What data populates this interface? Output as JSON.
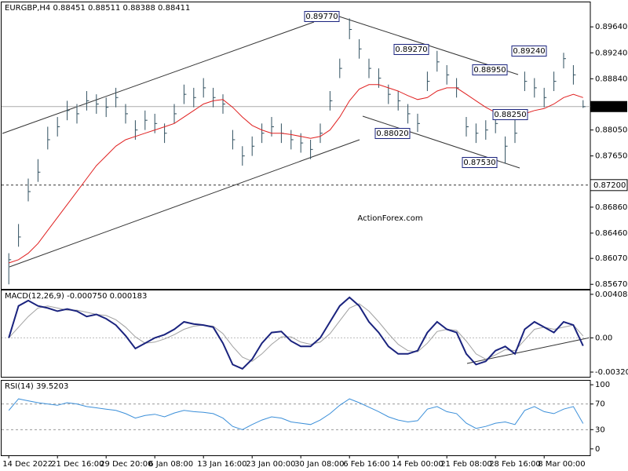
{
  "chart_data": [
    {
      "type": "ohlc",
      "title": "EURGBP,H4  0.88451 0.88511 0.88388 0.88411",
      "watermark": "ActionForex.com",
      "color": "#2f4f5f",
      "categories": [
        "14 Dec 2022",
        null,
        null,
        null,
        null,
        "21 Dec 16:00",
        null,
        null,
        null,
        null,
        "29 Dec 20:00",
        null,
        null,
        null,
        null,
        "6 Jan 08:00",
        null,
        null,
        null,
        null,
        "13 Jan 16:00",
        null,
        null,
        null,
        null,
        "23 Jan 00:00",
        null,
        null,
        null,
        null,
        "30 Jan 08:00",
        null,
        null,
        null,
        null,
        "6 Feb 16:00",
        null,
        null,
        null,
        null,
        "14 Feb 00:00",
        null,
        null,
        null,
        null,
        "21 Feb 08:00",
        null,
        null,
        null,
        null,
        "28 Feb 16:00",
        null,
        null,
        null,
        null,
        "8 Mar 00:00",
        null,
        null,
        null,
        null
      ],
      "close": [
        0.8605,
        0.864,
        0.871,
        0.874,
        0.879,
        0.881,
        0.8835,
        0.883,
        0.885,
        0.8845,
        0.884,
        0.8855,
        0.883,
        0.8805,
        0.882,
        0.8815,
        0.88,
        0.883,
        0.886,
        0.8855,
        0.887,
        0.8855,
        0.8845,
        0.879,
        0.8765,
        0.878,
        0.88,
        0.881,
        0.88,
        0.879,
        0.8785,
        0.8775,
        0.88,
        0.885,
        0.89,
        0.896,
        0.893,
        0.89,
        0.8885,
        0.886,
        0.885,
        0.883,
        0.8815,
        0.888,
        0.891,
        0.889,
        0.887,
        0.881,
        0.88,
        0.8805,
        0.8815,
        0.878,
        0.88,
        0.888,
        0.887,
        0.8855,
        0.888,
        0.8915,
        0.889,
        0.8841
      ],
      "high": [
        0.8615,
        0.866,
        0.873,
        0.876,
        0.881,
        0.8825,
        0.885,
        0.8845,
        0.8865,
        0.886,
        0.8855,
        0.887,
        0.8845,
        0.882,
        0.8835,
        0.883,
        0.8815,
        0.8845,
        0.8875,
        0.887,
        0.8885,
        0.887,
        0.886,
        0.8805,
        0.878,
        0.8795,
        0.8815,
        0.8825,
        0.8815,
        0.8805,
        0.88,
        0.879,
        0.8815,
        0.8865,
        0.8915,
        0.8977,
        0.8945,
        0.8915,
        0.89,
        0.8875,
        0.8865,
        0.8845,
        0.883,
        0.8895,
        0.8927,
        0.8905,
        0.8885,
        0.8825,
        0.8815,
        0.882,
        0.883,
        0.8795,
        0.8825,
        0.8895,
        0.8885,
        0.887,
        0.8895,
        0.8924,
        0.8905,
        0.8851
      ],
      "low": [
        0.8567,
        0.8625,
        0.8695,
        0.8725,
        0.8775,
        0.8795,
        0.882,
        0.8815,
        0.8835,
        0.883,
        0.8825,
        0.884,
        0.8815,
        0.879,
        0.8805,
        0.88,
        0.8785,
        0.8815,
        0.8845,
        0.884,
        0.8855,
        0.884,
        0.883,
        0.8775,
        0.875,
        0.8765,
        0.8785,
        0.8795,
        0.8785,
        0.8775,
        0.877,
        0.876,
        0.8785,
        0.8835,
        0.8885,
        0.8945,
        0.8915,
        0.8885,
        0.887,
        0.8845,
        0.8835,
        0.8815,
        0.8802,
        0.8865,
        0.8895,
        0.8875,
        0.8855,
        0.8795,
        0.8785,
        0.879,
        0.88,
        0.8753,
        0.8785,
        0.8865,
        0.8855,
        0.884,
        0.8865,
        0.89,
        0.8875,
        0.8839
      ],
      "ma": {
        "color": "#e02020",
        "values": [
          0.86,
          0.8605,
          0.8615,
          0.863,
          0.865,
          0.867,
          0.869,
          0.871,
          0.873,
          0.875,
          0.8765,
          0.878,
          0.879,
          0.8795,
          0.88,
          0.8805,
          0.881,
          0.8815,
          0.8825,
          0.8835,
          0.8845,
          0.885,
          0.8852,
          0.884,
          0.8825,
          0.8812,
          0.8805,
          0.88,
          0.88,
          0.8798,
          0.8795,
          0.8792,
          0.8795,
          0.8805,
          0.8825,
          0.885,
          0.8868,
          0.8875,
          0.8875,
          0.887,
          0.8865,
          0.8858,
          0.8852,
          0.8855,
          0.8865,
          0.887,
          0.887,
          0.886,
          0.885,
          0.884,
          0.8832,
          0.8828,
          0.8825,
          0.883,
          0.8835,
          0.8838,
          0.8845,
          0.8855,
          0.886,
          0.8855
        ]
      },
      "annotations": [
        "0.89770",
        "0.89270",
        "0.88950",
        "0.89240",
        "0.88250",
        "0.88020",
        "0.87530"
      ],
      "current": {
        "value": 0.88411,
        "label": "0.88411"
      },
      "level": {
        "value": 0.872,
        "label": "0.87200"
      },
      "ylim": [
        0.856,
        0.9003
      ],
      "yticks": [
        {
          "value": 0.8964,
          "label": "0.89640"
        },
        {
          "value": 0.8924,
          "label": "0.89240"
        },
        {
          "value": 0.8884,
          "label": "0.88840"
        },
        {
          "value": 0.8805,
          "label": "0.88050"
        },
        {
          "value": 0.8765,
          "label": "0.87650"
        },
        {
          "value": 0.8686,
          "label": "0.86860"
        },
        {
          "value": 0.8646,
          "label": "0.86460"
        },
        {
          "value": 0.8607,
          "label": "0.86070"
        },
        {
          "value": 0.8567,
          "label": "0.85670"
        }
      ]
    },
    {
      "type": "line",
      "title": "MACD(12,26,9) -0.000750 0.000183",
      "series": [
        {
          "color": "#1a237e",
          "values": [
            0,
            0.003,
            0.0035,
            0.003,
            0.0028,
            0.0025,
            0.0027,
            0.0025,
            0.002,
            0.0022,
            0.0018,
            0.0012,
            0.0002,
            -0.001,
            -0.0005,
            0,
            0.0003,
            0.0008,
            0.0015,
            0.0013,
            0.0012,
            0.001,
            -0.0005,
            -0.0025,
            -0.0029,
            -0.002,
            -0.0005,
            0.0005,
            0.0006,
            -0.0003,
            -0.0008,
            -0.0008,
            0,
            0.0015,
            0.003,
            0.0038,
            0.003,
            0.0015,
            0.0005,
            -0.0008,
            -0.0015,
            -0.0015,
            -0.0012,
            0.0005,
            0.0015,
            0.0008,
            0.0005,
            -0.0015,
            -0.0025,
            -0.0022,
            -0.0012,
            -0.0008,
            -0.0015,
            0.0008,
            0.0015,
            0.001,
            0.0005,
            0.0015,
            0.0012,
            -0.00075
          ]
        },
        {
          "color": "#a0a0a0",
          "values": [
            0,
            0.001,
            0.002,
            0.0028,
            0.003,
            0.0028,
            0.0026,
            0.0026,
            0.0024,
            0.0022,
            0.0021,
            0.0017,
            0.001,
            0.0001,
            -0.0005,
            -0.0004,
            -0.0001,
            0.0003,
            0.0008,
            0.0011,
            0.0012,
            0.0011,
            0.0004,
            -0.0008,
            -0.0018,
            -0.0022,
            -0.0015,
            -0.0006,
            0.0001,
            0.0001,
            -0.0004,
            -0.0006,
            -0.0004,
            0.0004,
            0.0016,
            0.0028,
            0.0032,
            0.0025,
            0.0015,
            0.0004,
            -0.0006,
            -0.0012,
            -0.0013,
            -0.0005,
            0.0006,
            0.0008,
            0.0007,
            -0.0003,
            -0.0015,
            -0.002,
            -0.0016,
            -0.0011,
            -0.0012,
            -0.0002,
            0.0008,
            0.001,
            0.0008,
            0.001,
            0.0012,
            0.000183
          ]
        }
      ],
      "ylim": [
        -0.00365,
        0.00452
      ],
      "yticks": [
        {
          "value": 0.004083,
          "label": "0.004083"
        },
        {
          "value": 0,
          "label": "0.00"
        },
        {
          "value": -0.003209,
          "label": "-0.003209"
        }
      ]
    },
    {
      "type": "line",
      "title": "RSI(14) 39.5203",
      "series": [
        {
          "color": "#3b8fd9",
          "values": [
            60,
            78,
            75,
            72,
            70,
            68,
            72,
            70,
            66,
            64,
            62,
            60,
            55,
            48,
            52,
            54,
            50,
            56,
            60,
            58,
            57,
            55,
            48,
            35,
            30,
            38,
            45,
            50,
            48,
            42,
            40,
            38,
            45,
            55,
            68,
            78,
            72,
            65,
            58,
            50,
            45,
            42,
            44,
            62,
            66,
            58,
            55,
            40,
            32,
            35,
            40,
            42,
            38,
            60,
            66,
            58,
            55,
            62,
            66,
            39.5203
          ]
        }
      ],
      "levels": [
        30,
        70
      ],
      "ylim": [
        -10,
        107.5
      ],
      "yticks": [
        100,
        70,
        30,
        0
      ]
    }
  ]
}
